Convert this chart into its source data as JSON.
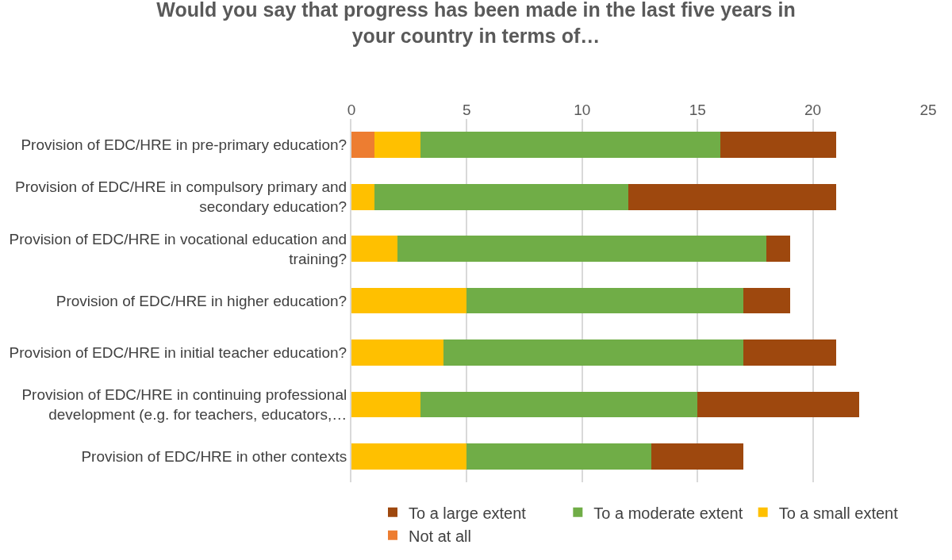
{
  "chart_data": {
    "type": "bar",
    "orientation": "horizontal",
    "stacked": true,
    "title": "Would you say that progress has been made in the last five years in\nyour country in terms of…",
    "categories": [
      "Provision of EDC/HRE in pre-primary education?",
      "Provision of EDC/HRE in compulsory primary and\nsecondary education?",
      "Provision of EDC/HRE in vocational education and\ntraining?",
      "Provision of EDC/HRE in higher education?",
      "Provision of EDC/HRE in initial teacher education?",
      "Provision of EDC/HRE in continuing professional\ndevelopment (e.g. for teachers, educators,…",
      "Provision of EDC/HRE in other contexts"
    ],
    "series": [
      {
        "name": "Not at all",
        "color": "#ed7d31",
        "values": [
          1,
          0,
          0,
          0,
          0,
          0,
          0
        ]
      },
      {
        "name": "To a small extent",
        "color": "#ffc000",
        "values": [
          2,
          1,
          2,
          5,
          4,
          3,
          5
        ]
      },
      {
        "name": "To a moderate extent",
        "color": "#70ad47",
        "values": [
          13,
          11,
          16,
          12,
          13,
          12,
          8
        ]
      },
      {
        "name": "To a large extent",
        "color": "#9e480e",
        "values": [
          5,
          9,
          1,
          2,
          4,
          7,
          4
        ]
      }
    ],
    "xlim": [
      0,
      25
    ],
    "xticks": [
      0,
      5,
      10,
      15,
      20,
      25
    ],
    "grid": "x",
    "legend": "bottom"
  }
}
